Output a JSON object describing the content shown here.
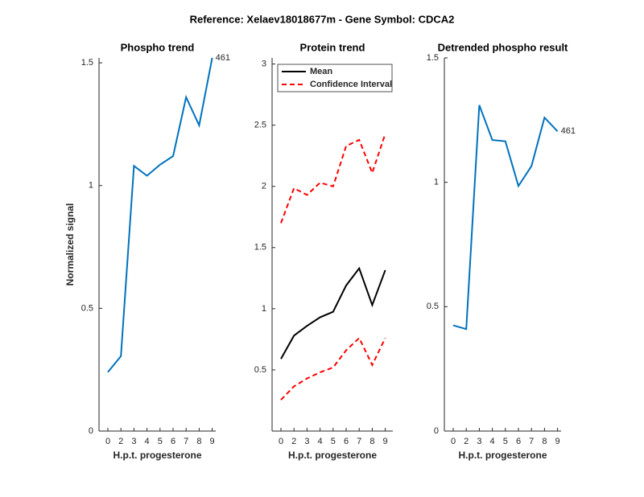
{
  "title": "Reference:  Xelaev18018677m - Gene Symbol:  CDCA2",
  "chart_data": [
    {
      "type": "line",
      "title": "Phospho trend",
      "xlabel": "H.p.t. progesterone",
      "ylabel": "Normalized signal",
      "categories": [
        "0",
        "2",
        "3",
        "4",
        "5",
        "6",
        "7",
        "8",
        "9"
      ],
      "series": [
        {
          "name": null,
          "color": "#0072bd",
          "values": [
            0.24,
            0.305,
            1.08,
            1.04,
            1.085,
            1.12,
            1.36,
            1.245,
            1.52
          ]
        }
      ],
      "annotation": "461",
      "ylim": [
        0,
        1.52
      ],
      "yticks": [
        0,
        0.5,
        1,
        {
          "value": 1.5,
          "label": "1.5"
        }
      ]
    },
    {
      "type": "line",
      "title": "Protein trend",
      "xlabel": "H.p.t. progesterone",
      "categories": [
        "0",
        "2",
        "3",
        "4",
        "5",
        "6",
        "7",
        "8",
        "9"
      ],
      "series": [
        {
          "name": "Mean",
          "color": "#000000",
          "dash": false,
          "values": [
            0.59,
            0.78,
            0.86,
            0.93,
            0.975,
            1.19,
            1.33,
            1.03,
            1.315
          ]
        },
        {
          "name": "Confidence Interval",
          "color": "#ff0000",
          "dash": true,
          "values": [
            1.7,
            1.985,
            1.93,
            2.03,
            2.0,
            2.33,
            2.38,
            2.11,
            2.43
          ],
          "lower_values": [
            0.255,
            0.365,
            0.43,
            0.48,
            0.52,
            0.66,
            0.76,
            0.54,
            0.76
          ]
        }
      ],
      "legend": "upper left",
      "ylim": [
        0,
        3.05
      ],
      "yticks": [
        0.5,
        1,
        1.5,
        2,
        2.5,
        3
      ]
    },
    {
      "type": "line",
      "title": "Detrended phospho result",
      "xlabel": "H.p.t. progesterone",
      "categories": [
        "0",
        "2",
        "3",
        "4",
        "5",
        "6",
        "7",
        "8",
        "9"
      ],
      "series": [
        {
          "name": null,
          "color": "#0072bd",
          "values": [
            0.425,
            0.41,
            1.31,
            1.17,
            1.165,
            0.985,
            1.065,
            1.26,
            1.205
          ]
        }
      ],
      "annotation": "461",
      "ylim": [
        0,
        1.5
      ],
      "yticks": [
        0,
        0.5,
        1,
        1.5
      ]
    }
  ]
}
